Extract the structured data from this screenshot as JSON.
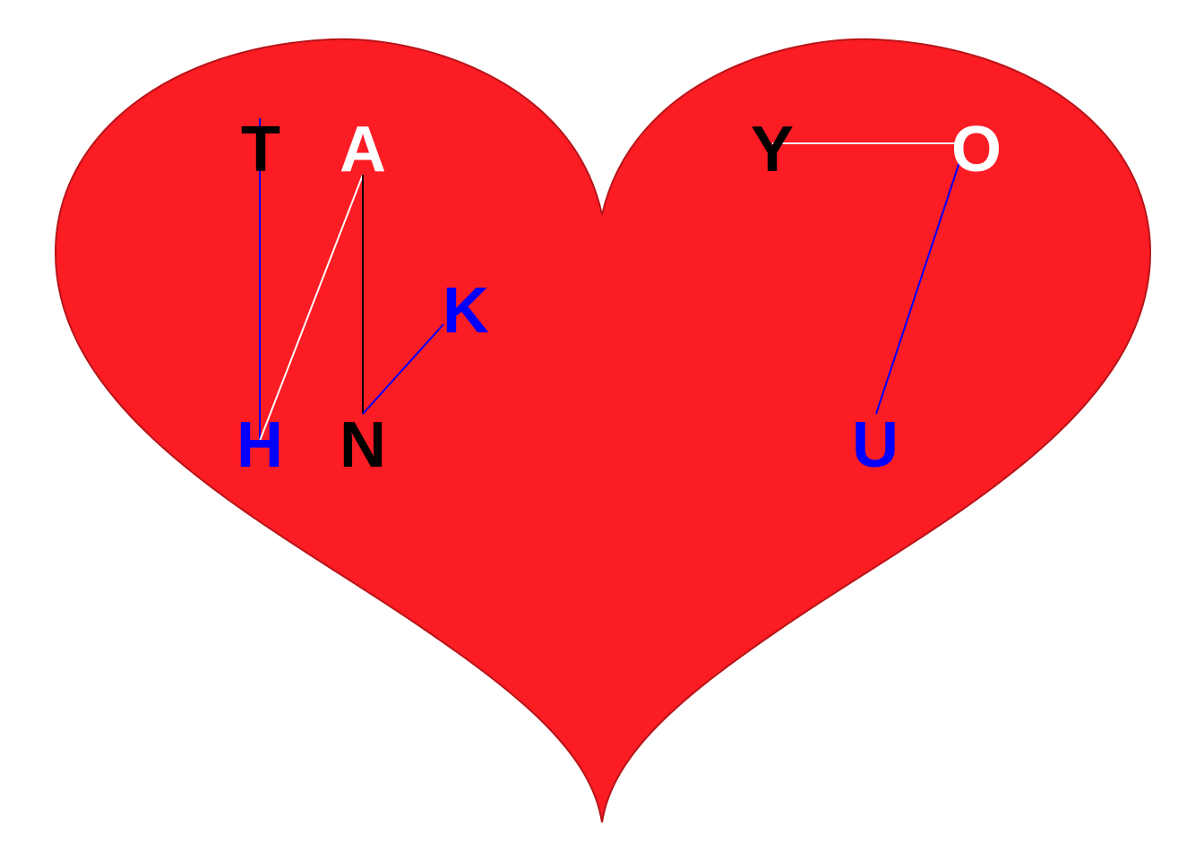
{
  "colors": {
    "background": "#ffffff",
    "heart_fill": "#fc1c24",
    "heart_stroke": "#b81418",
    "black": "#000000",
    "white": "#ffffff",
    "blue": "#0000ff"
  },
  "letters": {
    "T": {
      "text": "T",
      "color": "#000000"
    },
    "A": {
      "text": "A",
      "color": "#ffffff"
    },
    "K": {
      "text": "K",
      "color": "#0000ff"
    },
    "H": {
      "text": "H",
      "color": "#0000ff"
    },
    "N": {
      "text": "N",
      "color": "#000000"
    },
    "Y": {
      "text": "Y",
      "color": "#000000"
    },
    "O": {
      "text": "O",
      "color": "#ffffff"
    },
    "U": {
      "text": "U",
      "color": "#0000ff"
    }
  },
  "connectors": [
    {
      "from": "T",
      "to": "H",
      "color": "#0000ff"
    },
    {
      "from": "H",
      "to": "A",
      "color": "#ffffff"
    },
    {
      "from": "A",
      "to": "N",
      "color": "#000000"
    },
    {
      "from": "N",
      "to": "K",
      "color": "#0000ff"
    },
    {
      "from": "Y",
      "to": "O",
      "color": "#ffffff"
    },
    {
      "from": "O",
      "to": "U",
      "color": "#0000ff"
    }
  ]
}
